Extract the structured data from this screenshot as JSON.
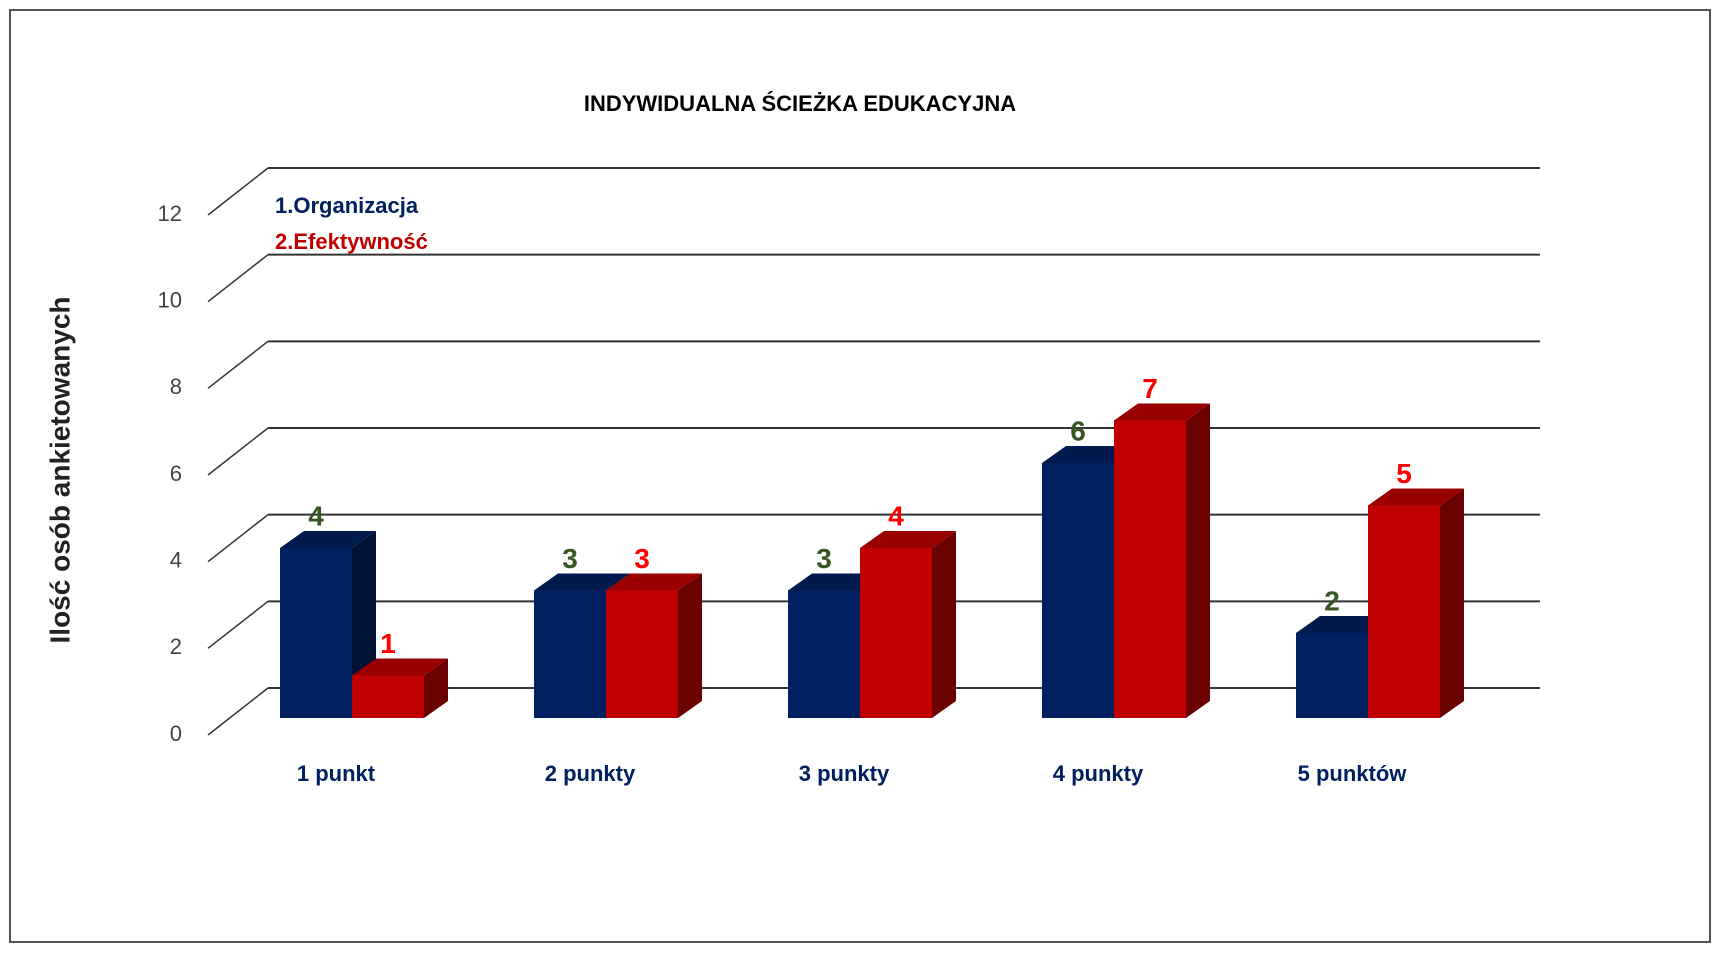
{
  "chart_data": {
    "type": "bar3d",
    "title": "INDYWIDUALNA ŚCIEŻKA EDUKACYJNA",
    "y_label": "Ilość osób ankietowanych",
    "categories": [
      "1 punkt",
      "2 punkty",
      "3 punkty",
      "4 punkty",
      "5 punktów"
    ],
    "series": [
      {
        "name": "1.Organizacja",
        "color": "#002060",
        "label_color": "#375623",
        "values": [
          4,
          3,
          3,
          6,
          2
        ]
      },
      {
        "name": "2.Efektywność",
        "color": "#c00000",
        "label_color": "#ff0000",
        "values": [
          1,
          3,
          4,
          7,
          5
        ]
      }
    ],
    "ylim": [
      0,
      12
    ],
    "yticks": [
      0,
      2,
      4,
      6,
      8,
      10,
      12
    ],
    "grid": true
  }
}
